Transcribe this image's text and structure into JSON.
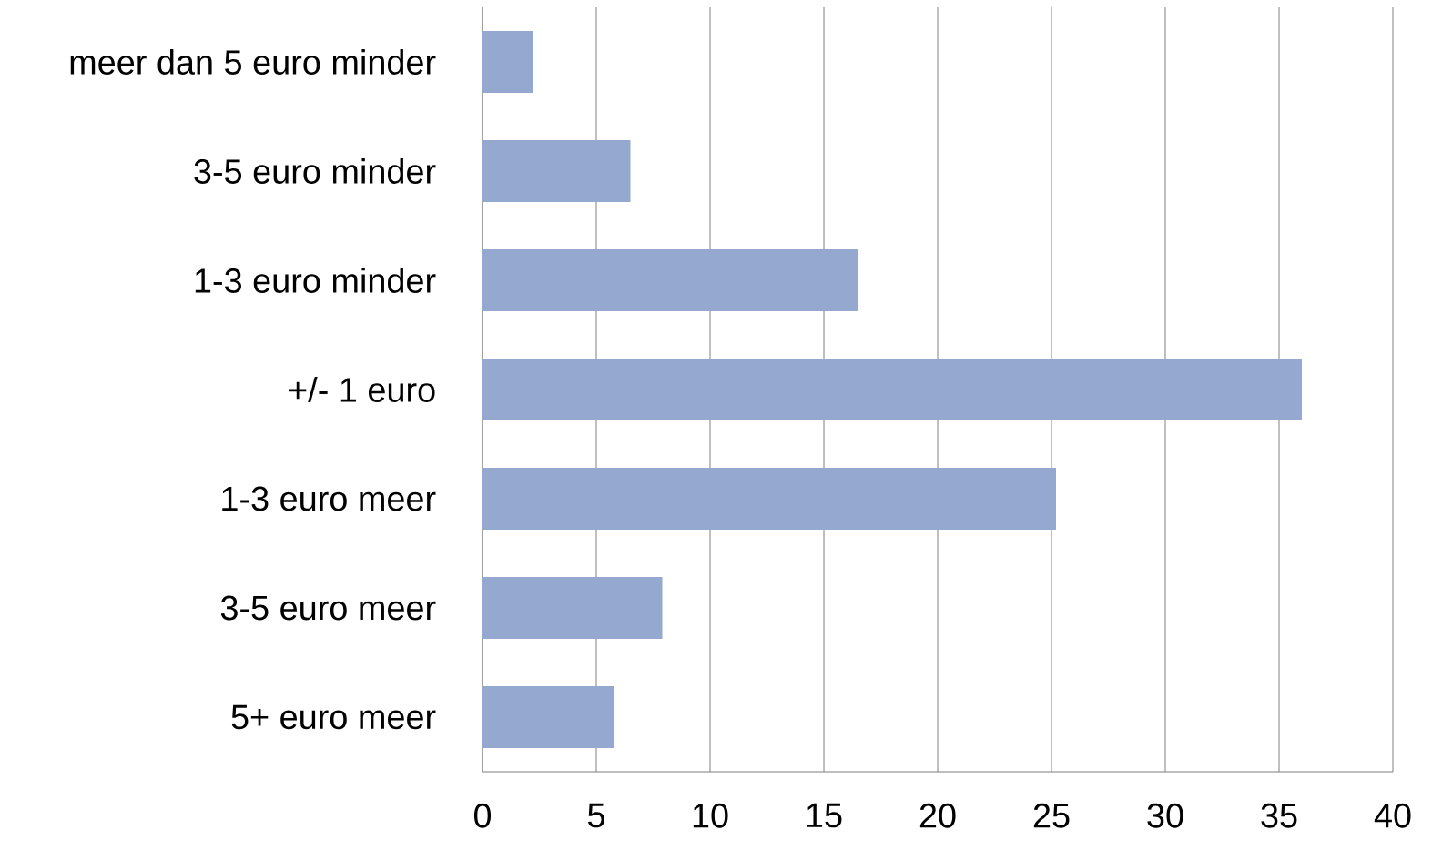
{
  "chart_data": {
    "type": "bar",
    "orientation": "horizontal",
    "categories": [
      "meer dan 5 euro minder",
      "3-5 euro minder",
      "1-3 euro minder",
      "+/- 1 euro",
      "1-3 euro meer",
      "3-5 euro meer",
      "5+ euro meer"
    ],
    "values": [
      2.2,
      6.5,
      16.5,
      36.0,
      25.2,
      7.9,
      5.8
    ],
    "color": "#95a9d0",
    "xlim": [
      0,
      40
    ],
    "xticks": [
      0,
      5,
      10,
      15,
      20,
      25,
      30,
      35,
      40
    ],
    "grid": "x"
  }
}
